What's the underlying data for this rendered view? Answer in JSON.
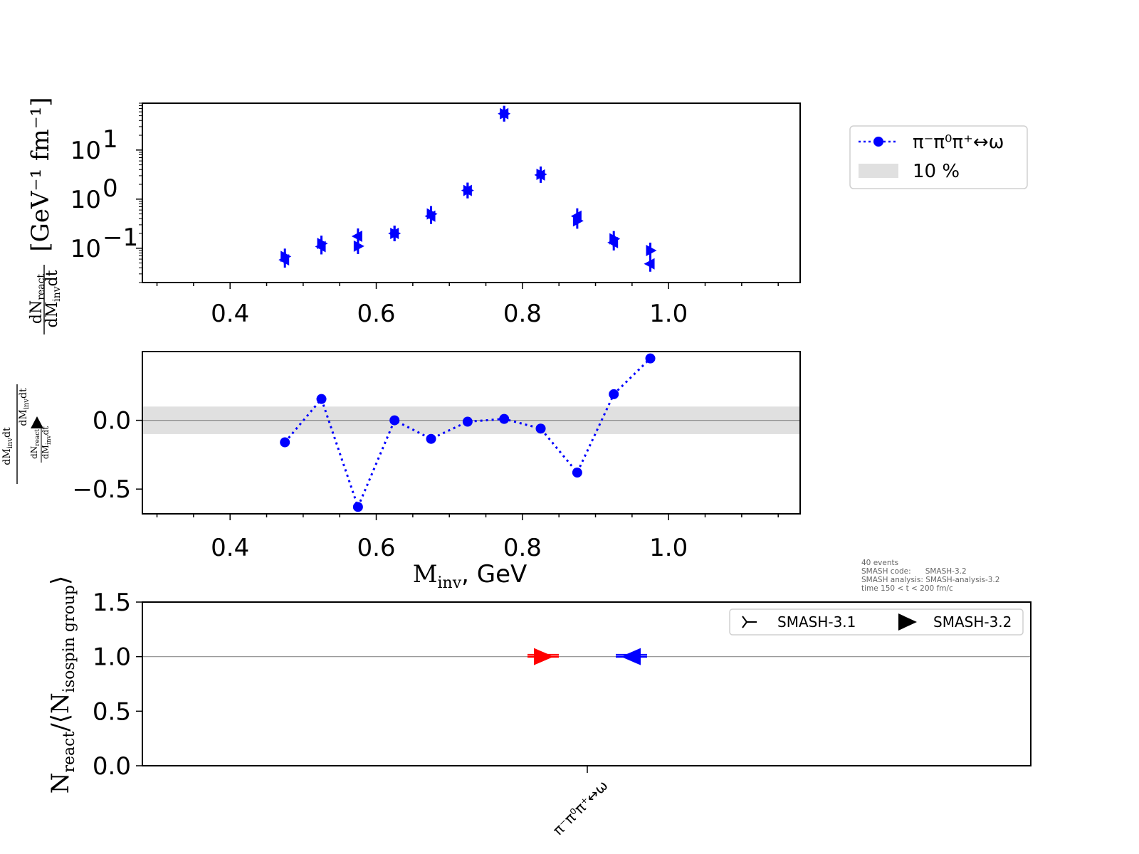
{
  "colors": {
    "series": "#0000ff",
    "smash31_marker": "#ff0000",
    "smash32_marker": "#0000ff",
    "band": "#e0e0e0",
    "refline": "#8c8c8c"
  },
  "chart_data": [
    {
      "id": "spectrum",
      "type": "scatter",
      "yscale": "log",
      "xlim": [
        0.28,
        1.18
      ],
      "ylim": [
        0.02,
        90
      ],
      "xticks": [
        "0.4",
        "0.6",
        "0.8",
        "1.0"
      ],
      "yticks": [
        {
          "value": 0.1,
          "base": "10",
          "exp": "−1"
        },
        {
          "value": 1,
          "base": "10",
          "exp": "0"
        },
        {
          "value": 10,
          "base": "10",
          "exp": "1"
        }
      ],
      "ylabel": {
        "frac_num": "dN",
        "frac_num_sub": "react",
        "frac_den": "dM",
        "frac_den_sub": "inv",
        "frac_den_end": "dt",
        "unit": "[GeV⁻¹ fm⁻¹]"
      },
      "series": [
        {
          "marker": "tri_right",
          "x": [
            0.475,
            0.525,
            0.575,
            0.625,
            0.675,
            0.725,
            0.775,
            0.825,
            0.875,
            0.925,
            0.975
          ],
          "y": [
            0.068,
            0.125,
            0.11,
            0.2,
            0.5,
            1.5,
            55,
            3.2,
            0.36,
            0.155,
            0.09
          ]
        },
        {
          "marker": "tri_left",
          "x": [
            0.475,
            0.525,
            0.575,
            0.625,
            0.675,
            0.725,
            0.775,
            0.825,
            0.875,
            0.925,
            0.975
          ],
          "y": [
            0.058,
            0.108,
            0.175,
            0.2,
            0.45,
            1.5,
            55,
            3.1,
            0.45,
            0.13,
            0.048
          ]
        }
      ]
    },
    {
      "id": "ratio",
      "type": "line",
      "xlim": [
        0.28,
        1.18
      ],
      "ylim": [
        -0.68,
        0.5
      ],
      "xticks": [
        "0.4",
        "0.6",
        "0.8",
        "1.0"
      ],
      "yticks": [
        "0.0",
        "−0.5"
      ],
      "band": [
        -0.1,
        0.1
      ],
      "xlabel": {
        "main": "M",
        "sub": "inv",
        "rest": ", GeV"
      },
      "ylabel": {
        "left_top": "dM",
        "left_top_sub": "inv",
        "left_top_end": "dt",
        "right_top": "dM",
        "right_top_sub": "inv",
        "right_top_end": "dt",
        "right_mid": "dN",
        "right_mid_sub": "react",
        "right_bot": "dM",
        "right_bot_sub": "inv",
        "right_bot_end": "dt"
      },
      "x": [
        0.475,
        0.525,
        0.575,
        0.625,
        0.675,
        0.725,
        0.775,
        0.825,
        0.875,
        0.925,
        0.975
      ],
      "y": [
        -0.16,
        0.155,
        -0.63,
        0.0,
        -0.135,
        -0.01,
        0.01,
        -0.06,
        -0.38,
        0.19,
        0.45
      ]
    },
    {
      "id": "ratio_to_group",
      "type": "scatter",
      "ylim": [
        0.0,
        1.5
      ],
      "yticks": [
        "0.0",
        "0.5",
        "1.0",
        "1.5"
      ],
      "refline": 1.0,
      "xcategory_label": "π⁻π⁰π⁺↔ω",
      "ylabel": {
        "main": "N",
        "sub": "react",
        "mid": "/⟨N",
        "sub2": "isospin group",
        "end": "⟩"
      },
      "series": [
        {
          "name": "SMASH-3.1",
          "value": 1.0,
          "color": "#ff0000"
        },
        {
          "name": "SMASH-3.2",
          "value": 1.0,
          "color": "#0000ff"
        }
      ]
    }
  ],
  "legend_top": [
    {
      "label": "π⁻π⁰π⁺↔ω",
      "kind": "line-marker"
    },
    {
      "label": "10 %",
      "kind": "band"
    }
  ],
  "legend_bottom": [
    {
      "label": "SMASH-3.1",
      "marker": "tri_right_thin"
    },
    {
      "label": "SMASH-3.2",
      "marker": "tri_right_filled"
    }
  ],
  "info": [
    "40 events",
    "SMASH code:      SMASH-3.2",
    "SMASH analysis: SMASH-analysis-3.2",
    "time 150 < t < 200 fm/c"
  ]
}
